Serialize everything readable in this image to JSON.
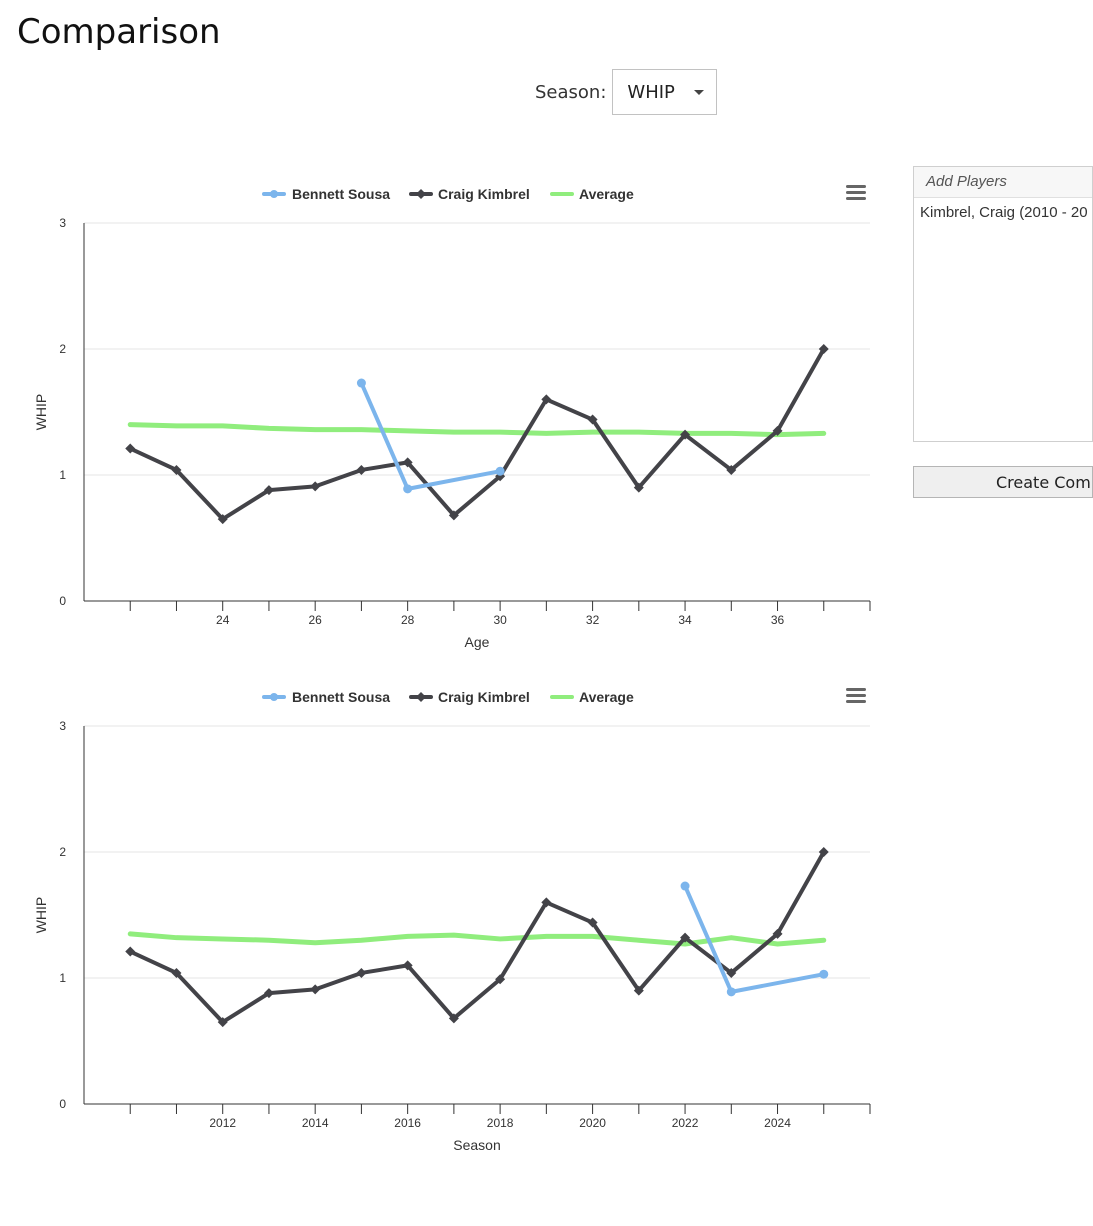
{
  "page": {
    "title": "Comparison"
  },
  "season_select": {
    "label": "Season:",
    "value": "WHIP"
  },
  "add_players": {
    "header": "Add Players",
    "items": [
      "Kimbrel, Craig (2010 - 20"
    ]
  },
  "create_button": {
    "label": "Create Com"
  },
  "colors": {
    "sousa": "#7cb5ec",
    "kimbrel": "#434348",
    "average": "#90ed7d"
  },
  "icons": {
    "chart_menu": "hamburger-menu-icon",
    "dropdown": "caret-down-icon"
  },
  "chart_data": [
    {
      "type": "line",
      "xlabel": "Age",
      "ylabel": "WHIP",
      "xlim": [
        21,
        38
      ],
      "ylim": [
        0,
        3
      ],
      "x_ticks": [
        22,
        23,
        24,
        25,
        26,
        27,
        28,
        29,
        30,
        31,
        32,
        33,
        34,
        35,
        36,
        37,
        38
      ],
      "x_tick_labels": [
        24,
        26,
        28,
        30,
        32,
        34,
        36
      ],
      "y_ticks": [
        0,
        1,
        2,
        3
      ],
      "grid": true,
      "legend_position": "top-center",
      "series": [
        {
          "name": "Bennett Sousa",
          "color": "#7cb5ec",
          "marker": "circle",
          "x": [
            27,
            28,
            30
          ],
          "values": [
            1.73,
            0.89,
            1.03
          ]
        },
        {
          "name": "Craig Kimbrel",
          "color": "#434348",
          "marker": "diamond",
          "x": [
            22,
            23,
            24,
            25,
            26,
            27,
            28,
            29,
            30,
            31,
            32,
            33,
            34,
            35,
            36,
            37
          ],
          "values": [
            1.21,
            1.04,
            0.65,
            0.88,
            0.91,
            1.04,
            1.1,
            0.68,
            0.99,
            1.6,
            1.44,
            0.9,
            1.32,
            1.04,
            1.35,
            2.0
          ]
        },
        {
          "name": "Average",
          "color": "#90ed7d",
          "marker": "none",
          "x": [
            22,
            23,
            24,
            25,
            26,
            27,
            28,
            29,
            30,
            31,
            32,
            33,
            34,
            35,
            36,
            37
          ],
          "values": [
            1.4,
            1.39,
            1.39,
            1.37,
            1.36,
            1.36,
            1.35,
            1.34,
            1.34,
            1.33,
            1.34,
            1.34,
            1.33,
            1.33,
            1.32,
            1.33
          ]
        }
      ]
    },
    {
      "type": "line",
      "xlabel": "Season",
      "ylabel": "WHIP",
      "xlim": [
        2009,
        2026
      ],
      "ylim": [
        0,
        3
      ],
      "x_ticks": [
        2010,
        2011,
        2012,
        2013,
        2014,
        2015,
        2016,
        2017,
        2018,
        2019,
        2020,
        2021,
        2022,
        2023,
        2024,
        2025,
        2026
      ],
      "x_tick_labels": [
        2012,
        2014,
        2016,
        2018,
        2020,
        2022,
        2024
      ],
      "y_ticks": [
        0,
        1,
        2,
        3
      ],
      "grid": true,
      "legend_position": "top-center",
      "series": [
        {
          "name": "Bennett Sousa",
          "color": "#7cb5ec",
          "marker": "circle",
          "x": [
            2022,
            2023,
            2025
          ],
          "values": [
            1.73,
            0.89,
            1.03
          ]
        },
        {
          "name": "Craig Kimbrel",
          "color": "#434348",
          "marker": "diamond",
          "x": [
            2010,
            2011,
            2012,
            2013,
            2014,
            2015,
            2016,
            2017,
            2018,
            2019,
            2020,
            2021,
            2022,
            2023,
            2024,
            2025
          ],
          "values": [
            1.21,
            1.04,
            0.65,
            0.88,
            0.91,
            1.04,
            1.1,
            0.68,
            0.99,
            1.6,
            1.44,
            0.9,
            1.32,
            1.04,
            1.35,
            2.0
          ]
        },
        {
          "name": "Average",
          "color": "#90ed7d",
          "marker": "none",
          "x": [
            2010,
            2011,
            2012,
            2013,
            2014,
            2015,
            2016,
            2017,
            2018,
            2019,
            2020,
            2021,
            2022,
            2023,
            2024,
            2025
          ],
          "values": [
            1.35,
            1.32,
            1.31,
            1.3,
            1.28,
            1.3,
            1.33,
            1.34,
            1.31,
            1.33,
            1.33,
            1.3,
            1.27,
            1.32,
            1.27,
            1.3
          ]
        }
      ]
    }
  ]
}
